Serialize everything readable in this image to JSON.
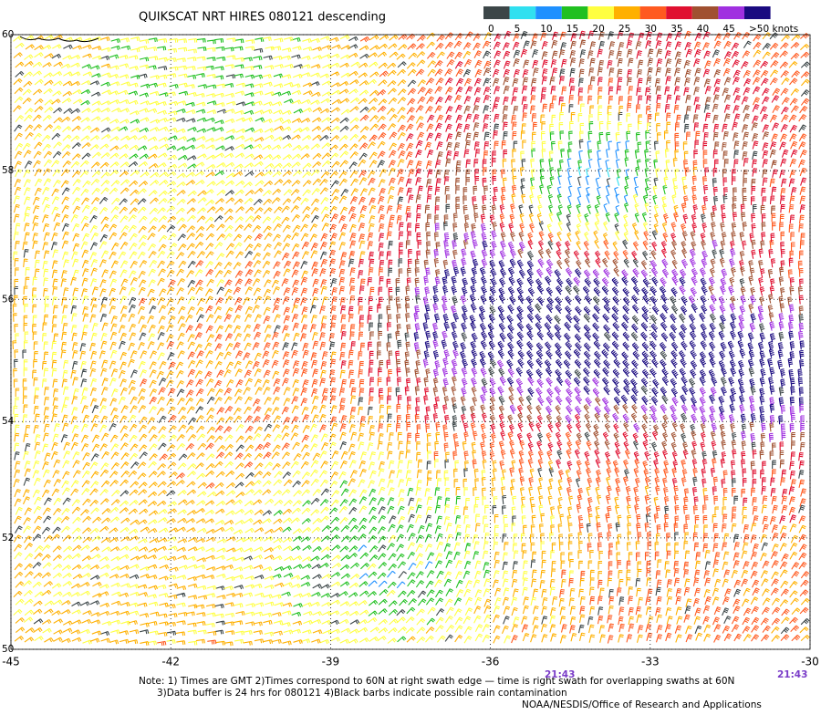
{
  "title": "QUIKSCAT NRT HIRES 080121 descending",
  "legend": {
    "items": [
      {
        "label": "0",
        "color": "#3c4648"
      },
      {
        "label": "5",
        "color": "#30e0f0"
      },
      {
        "label": "10",
        "color": "#1e90ff"
      },
      {
        "label": "15",
        "color": "#20c020"
      },
      {
        "label": "20",
        "color": "#ffff40"
      },
      {
        "label": "25",
        "color": "#ffb000"
      },
      {
        "label": "30",
        "color": "#ff5a20"
      },
      {
        "label": "35",
        "color": "#e01030"
      },
      {
        "label": "40",
        "color": "#a05030"
      },
      {
        "label": "45",
        "color": "#a030e0"
      },
      {
        "label": ">50 knots",
        "color": "#1a0a80"
      }
    ]
  },
  "map": {
    "lon_range": [
      -45,
      -30
    ],
    "lat_range": [
      50,
      60
    ],
    "lon_ticks": [
      -45,
      -42,
      -39,
      -36,
      -33,
      -30
    ],
    "lat_ticks": [
      60,
      58,
      56,
      54,
      52,
      50
    ]
  },
  "times": [
    "21:43",
    "21:43"
  ],
  "notes": [
    "Note: 1) Times are GMT 2)Times correspond to 60N at right swath edge — time is right swath for overlapping swaths at 60N",
    "3)Data buffer is 24 hrs for 080121 4)Black barbs indicate possible rain contamination"
  ],
  "credit": "NOAA/NESDIS/Office of Research and Applications"
}
